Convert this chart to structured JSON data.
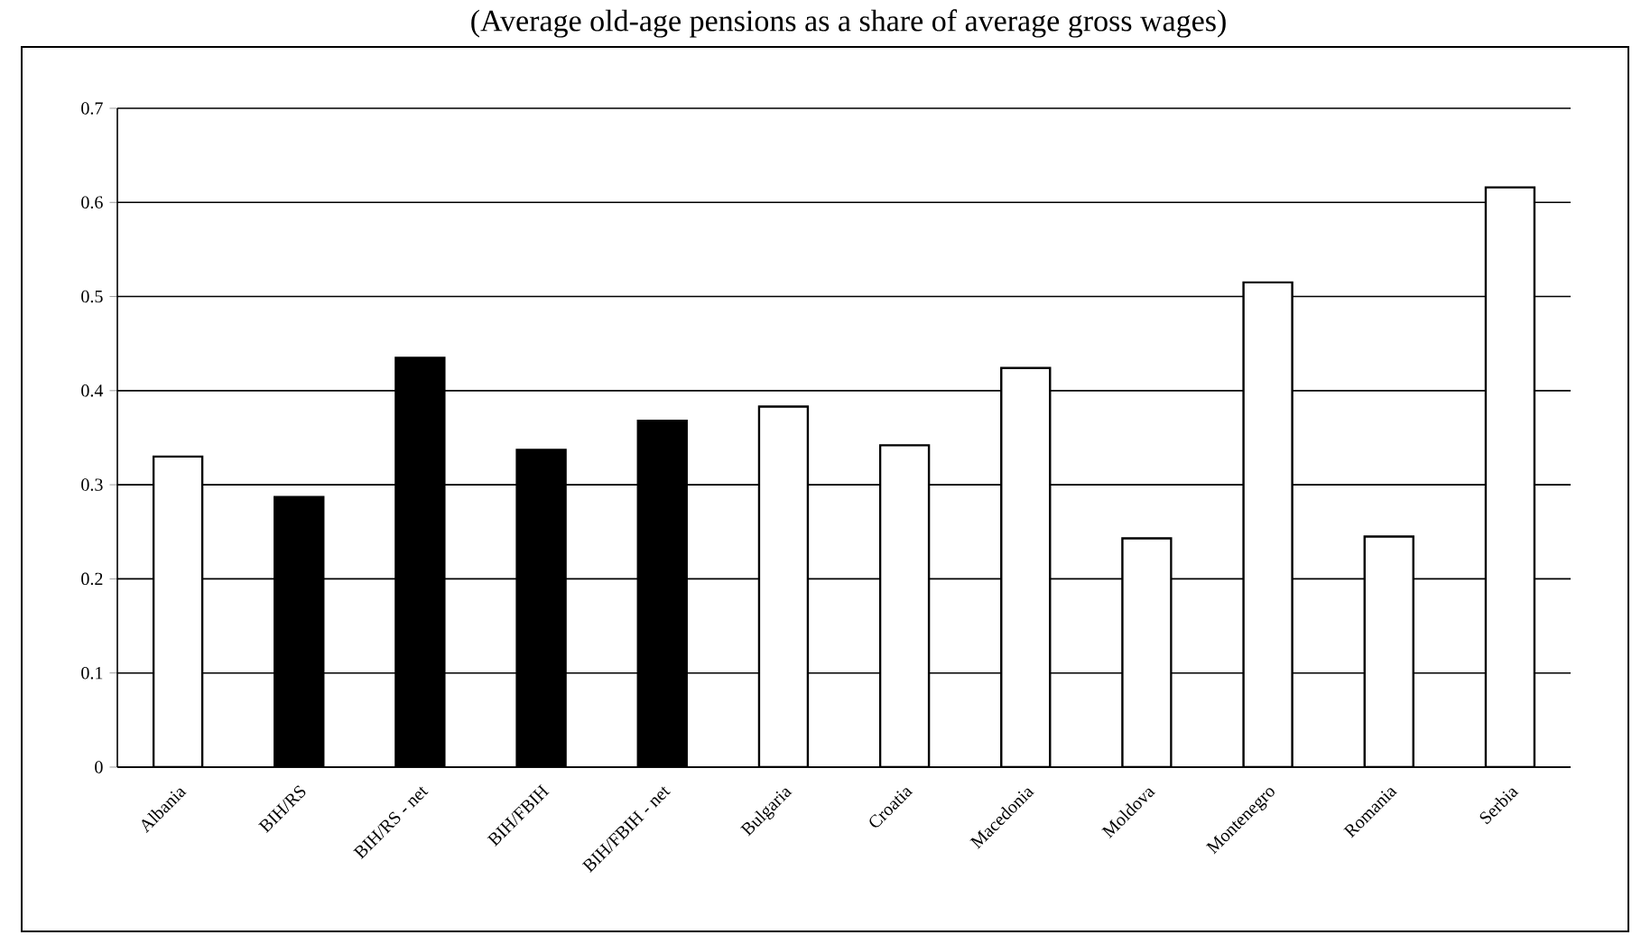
{
  "chart_data": {
    "type": "bar",
    "title": "(Average old-age pensions as a share of average gross wages)",
    "categories": [
      "Albania",
      "BIH/RS",
      "BIH/RS - net",
      "BIH/FBIH",
      "BIH/FBIH - net",
      "Bulgaria",
      "Croatia",
      "Macedonia",
      "Moldova",
      "Montenegro",
      "Romania",
      "Serbia"
    ],
    "values": [
      0.33,
      0.287,
      0.435,
      0.337,
      0.368,
      0.383,
      0.342,
      0.424,
      0.243,
      0.515,
      0.245,
      0.616
    ],
    "colors": [
      "#ffffff",
      "#000000",
      "#000000",
      "#000000",
      "#000000",
      "#ffffff",
      "#ffffff",
      "#ffffff",
      "#ffffff",
      "#ffffff",
      "#ffffff",
      "#ffffff"
    ],
    "ylim": [
      0,
      0.7
    ],
    "yticks": [
      0,
      0.1,
      0.2,
      0.3,
      0.4,
      0.5,
      0.6,
      0.7
    ],
    "grid": "y"
  }
}
